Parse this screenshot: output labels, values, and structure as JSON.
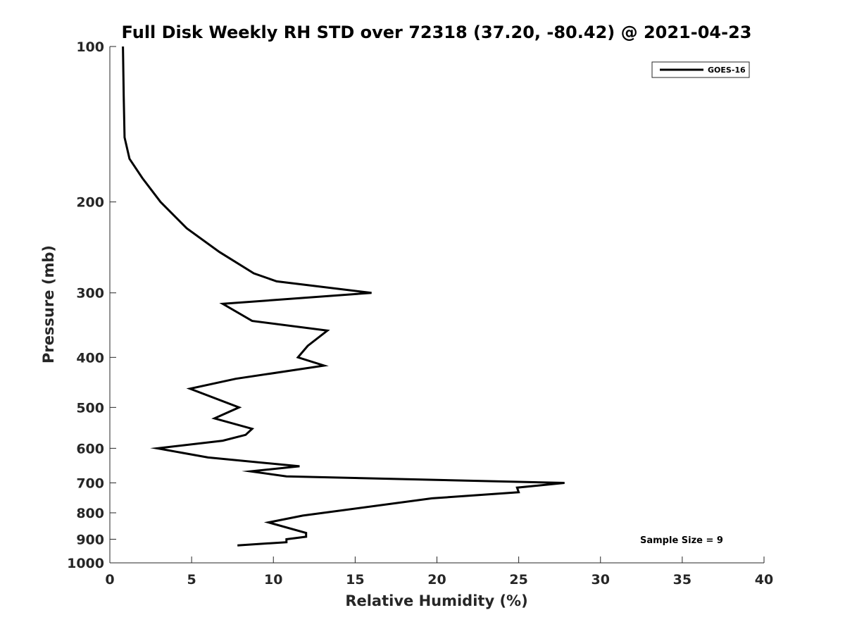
{
  "chart_data": {
    "type": "line",
    "title": "Full Disk Weekly RH STD over 72318 (37.20, -80.42) @ 2021-04-23",
    "xlabel": "Relative Humidity (%)",
    "ylabel": "Pressure (mb)",
    "xlim": [
      0,
      40
    ],
    "ylim": [
      100,
      1000
    ],
    "y_scale": "log",
    "y_reversed": true,
    "x_ticks": [
      0,
      5,
      10,
      15,
      20,
      25,
      30,
      35,
      40
    ],
    "x_tick_labels": [
      "0",
      "5",
      "10",
      "15",
      "20",
      "25",
      "30",
      "35",
      "40"
    ],
    "y_ticks": [
      100,
      200,
      300,
      400,
      500,
      600,
      700,
      800,
      900,
      1000
    ],
    "y_tick_labels": [
      "100",
      "200",
      "300",
      "400",
      "500",
      "600",
      "700",
      "800",
      "900",
      "1000"
    ],
    "grid": false,
    "legend_position": "top-right",
    "annotation": "Sample Size = 9",
    "series": [
      {
        "name": "GOES-16",
        "color": "#000000",
        "points": [
          {
            "x": 0.8,
            "y": 100
          },
          {
            "x": 0.85,
            "y": 125
          },
          {
            "x": 0.9,
            "y": 150
          },
          {
            "x": 1.2,
            "y": 165
          },
          {
            "x": 2.0,
            "y": 180
          },
          {
            "x": 3.1,
            "y": 200
          },
          {
            "x": 4.7,
            "y": 225
          },
          {
            "x": 6.7,
            "y": 250
          },
          {
            "x": 8.8,
            "y": 275
          },
          {
            "x": 10.2,
            "y": 285
          },
          {
            "x": 16.0,
            "y": 300
          },
          {
            "x": 6.9,
            "y": 315
          },
          {
            "x": 8.7,
            "y": 340
          },
          {
            "x": 13.3,
            "y": 355
          },
          {
            "x": 12.1,
            "y": 380
          },
          {
            "x": 11.5,
            "y": 400
          },
          {
            "x": 13.1,
            "y": 415
          },
          {
            "x": 7.7,
            "y": 440
          },
          {
            "x": 4.9,
            "y": 460
          },
          {
            "x": 7.9,
            "y": 500
          },
          {
            "x": 6.4,
            "y": 525
          },
          {
            "x": 8.7,
            "y": 550
          },
          {
            "x": 8.3,
            "y": 565
          },
          {
            "x": 6.9,
            "y": 580
          },
          {
            "x": 2.9,
            "y": 600
          },
          {
            "x": 6.0,
            "y": 625
          },
          {
            "x": 11.6,
            "y": 650
          },
          {
            "x": 8.6,
            "y": 665
          },
          {
            "x": 10.8,
            "y": 680
          },
          {
            "x": 27.8,
            "y": 700
          },
          {
            "x": 24.9,
            "y": 715
          },
          {
            "x": 25.0,
            "y": 730
          },
          {
            "x": 19.7,
            "y": 750
          },
          {
            "x": 11.8,
            "y": 810
          },
          {
            "x": 9.7,
            "y": 835
          },
          {
            "x": 12.0,
            "y": 875
          },
          {
            "x": 12.0,
            "y": 890
          },
          {
            "x": 10.8,
            "y": 900
          },
          {
            "x": 10.8,
            "y": 912
          },
          {
            "x": 7.8,
            "y": 925
          }
        ]
      }
    ]
  }
}
